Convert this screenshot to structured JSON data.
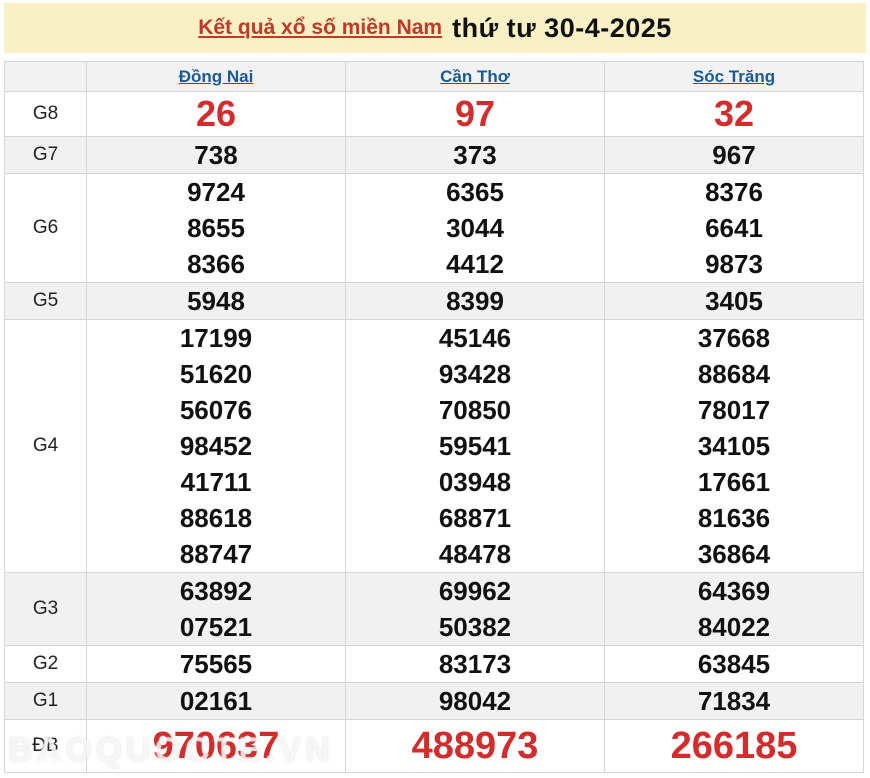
{
  "banner": {
    "title_link": "Kết quả xổ số miền Nam",
    "title_date": "thứ tư 30-4-2025"
  },
  "table": {
    "columns": [
      "Đồng Nai",
      "Cần Thơ",
      "Sóc Trăng"
    ],
    "rows": [
      {
        "label": "G8",
        "style": "red-large",
        "values": [
          [
            "26"
          ],
          [
            "97"
          ],
          [
            "32"
          ]
        ]
      },
      {
        "label": "G7",
        "style": "normal",
        "values": [
          [
            "738"
          ],
          [
            "373"
          ],
          [
            "967"
          ]
        ]
      },
      {
        "label": "G6",
        "style": "normal",
        "values": [
          [
            "9724",
            "8655",
            "8366"
          ],
          [
            "6365",
            "3044",
            "4412"
          ],
          [
            "8376",
            "6641",
            "9873"
          ]
        ]
      },
      {
        "label": "G5",
        "style": "normal",
        "values": [
          [
            "5948"
          ],
          [
            "8399"
          ],
          [
            "3405"
          ]
        ]
      },
      {
        "label": "G4",
        "style": "normal",
        "values": [
          [
            "17199",
            "51620",
            "56076",
            "98452",
            "41711",
            "88618",
            "88747"
          ],
          [
            "45146",
            "93428",
            "70850",
            "59541",
            "03948",
            "68871",
            "48478"
          ],
          [
            "37668",
            "88684",
            "78017",
            "34105",
            "17661",
            "81636",
            "36864"
          ]
        ]
      },
      {
        "label": "G3",
        "style": "normal",
        "values": [
          [
            "63892",
            "07521"
          ],
          [
            "69962",
            "50382"
          ],
          [
            "64369",
            "84022"
          ]
        ]
      },
      {
        "label": "G2",
        "style": "normal",
        "values": [
          [
            "75565"
          ],
          [
            "83173"
          ],
          [
            "63845"
          ]
        ]
      },
      {
        "label": "G1",
        "style": "normal",
        "values": [
          [
            "02161"
          ],
          [
            "98042"
          ],
          [
            "71834"
          ]
        ]
      },
      {
        "label": "ĐB",
        "style": "red-large",
        "values": [
          [
            "970637"
          ],
          [
            "488973"
          ],
          [
            "266185"
          ]
        ]
      }
    ]
  },
  "watermark": "BAOQUOCTE.VN",
  "colors": {
    "banner_bg": "#faf0c5",
    "title_red": "#c0392b",
    "column_link_blue": "#1a5a96",
    "number_red": "#d32c2c",
    "stripe_gray": "#f1f1f1"
  }
}
